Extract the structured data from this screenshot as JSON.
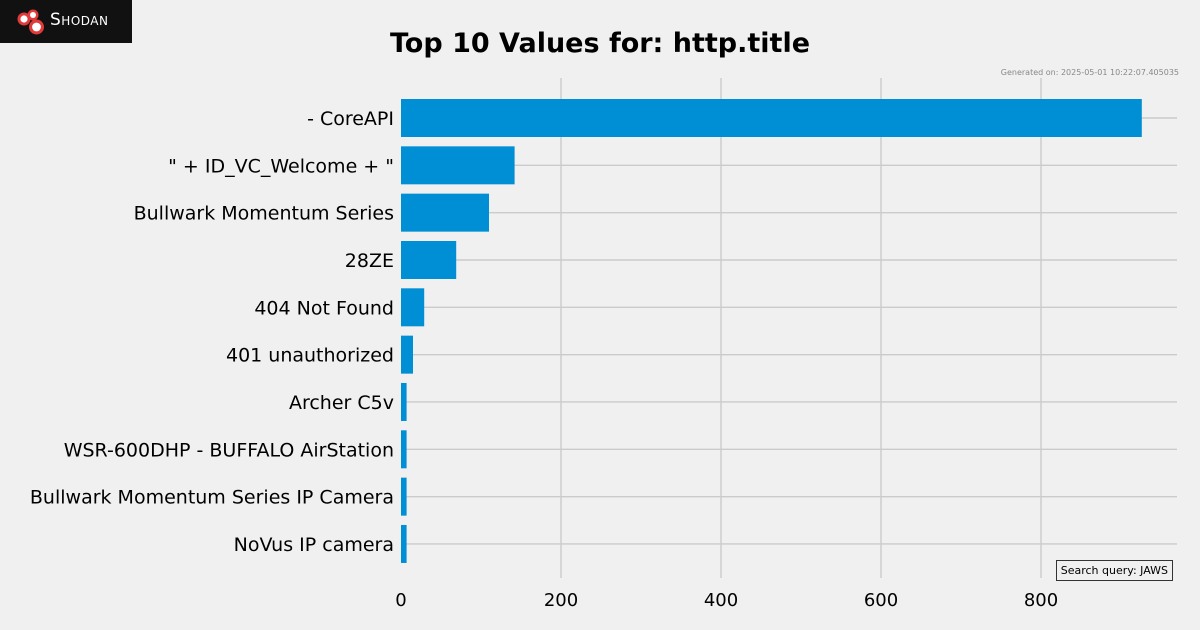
{
  "brand": {
    "logo_text": "Shodan",
    "logo_icon": "shodan-logo-icon"
  },
  "chart_data": {
    "type": "bar",
    "orientation": "horizontal",
    "title": "Top 10 Values for: http.title",
    "xlabel": "",
    "ylabel": "",
    "categories": [
      "- CoreAPI",
      "\" + ID_VC_Welcome + \"",
      "Bullwark Momentum Series",
      "28ZE",
      "404 Not Found",
      "401 unauthorized",
      "Archer C5v",
      "WSR-600DHP - BUFFALO AirStation",
      "Bullwark Momentum Series IP Camera",
      "NoVus IP camera"
    ],
    "values": [
      926,
      142,
      110,
      69,
      29,
      15,
      7,
      7,
      7,
      7
    ],
    "xlim": [
      0,
      970
    ],
    "xticks": [
      0,
      200,
      400,
      600,
      800
    ],
    "grid": true,
    "bar_color": "#008fd5",
    "background_color": "#f0f0f0",
    "grid_color": "#cbcbcb"
  },
  "meta": {
    "generated_text": "Generated on: 2025-05-01 10:22:07.405035",
    "query_text": "Search query: JAWS"
  }
}
